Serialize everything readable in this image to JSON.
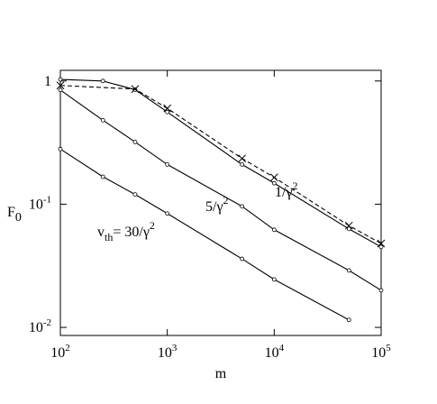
{
  "chart_data": {
    "type": "line",
    "log_x": true,
    "log_y": true,
    "xlabel": "m",
    "ylabel": "F",
    "ylabel_sub": "0",
    "xlim": [
      100,
      100000
    ],
    "ylim": [
      0.0086,
      1.22
    ],
    "xticks": [
      {
        "value": 100,
        "label": "10",
        "power": "2"
      },
      {
        "value": 1000,
        "label": "10",
        "power": "3"
      },
      {
        "value": 10000,
        "label": "10",
        "power": "4"
      },
      {
        "value": 100000,
        "label": "10",
        "power": "5"
      }
    ],
    "yticks": [
      {
        "value": 0.01,
        "label": "10",
        "power": "-2"
      },
      {
        "value": 0.1,
        "label": "10",
        "power": "-1"
      },
      1
    ],
    "series": [
      {
        "color": "#000000",
        "dash": false,
        "marker": "circle",
        "x": [
          100,
          250,
          500,
          1000,
          5000,
          10000,
          50000,
          100000
        ],
        "values": [
          1.03,
          1.0,
          0.85,
          0.56,
          0.21,
          0.148,
          0.063,
          0.045
        ]
      },
      {
        "color": "#000000",
        "dash": true,
        "marker": "x",
        "x": [
          100,
          500,
          1000,
          5000,
          10000,
          50000,
          100000
        ],
        "values": [
          0.92,
          0.86,
          0.6,
          0.235,
          0.165,
          0.067,
          0.048
        ]
      },
      {
        "color": "#000000",
        "dash": false,
        "marker": "circle",
        "x": [
          100,
          250,
          500,
          1000,
          5000,
          10000,
          50000,
          100000
        ],
        "values": [
          0.845,
          0.48,
          0.32,
          0.21,
          0.096,
          0.062,
          0.029,
          0.02
        ]
      },
      {
        "color": "#000000",
        "dash": false,
        "marker": "circle",
        "x": [
          100,
          250,
          500,
          1000,
          5000,
          10000,
          50000
        ],
        "values": [
          0.28,
          0.167,
          0.12,
          0.084,
          0.036,
          0.0245,
          0.0115
        ]
      }
    ],
    "annotations": [
      {
        "segments": [
          {
            "text": "1/γ",
            "style": "normal"
          },
          {
            "text": "2",
            "style": "sup"
          }
        ]
      },
      {
        "segments": [
          {
            "text": "5/γ",
            "style": "normal"
          },
          {
            "text": "2",
            "style": "sup"
          }
        ]
      },
      {
        "segments": [
          {
            "text": "v",
            "style": "normal"
          },
          {
            "text": "th",
            "style": "sub"
          },
          {
            "text": "= 30/γ",
            "style": "normal"
          },
          {
            "text": "2",
            "style": "sup"
          }
        ]
      }
    ]
  }
}
